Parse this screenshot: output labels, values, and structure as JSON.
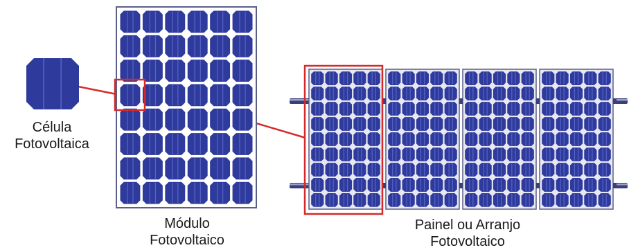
{
  "labels": {
    "cell": [
      "Célula",
      "Fotovoltaica"
    ],
    "module": [
      "Módulo",
      "Fotovoltaico"
    ],
    "array": [
      "Painel ou Arranjo",
      "Fotovoltaico"
    ]
  },
  "colors": {
    "cell": "#2e3a9c",
    "cell_highlight": "#5a64c8",
    "grid_white": "#ffffff",
    "frame": "#5a5f8a",
    "panel_bg": "#e8e8f2",
    "highlight": "#d62a2a",
    "rail": "#3a3f78",
    "rail_light": "#9aa0cc"
  },
  "icons": [
    "solar-cell-icon",
    "solar-module-icon",
    "solar-array-icon"
  ]
}
